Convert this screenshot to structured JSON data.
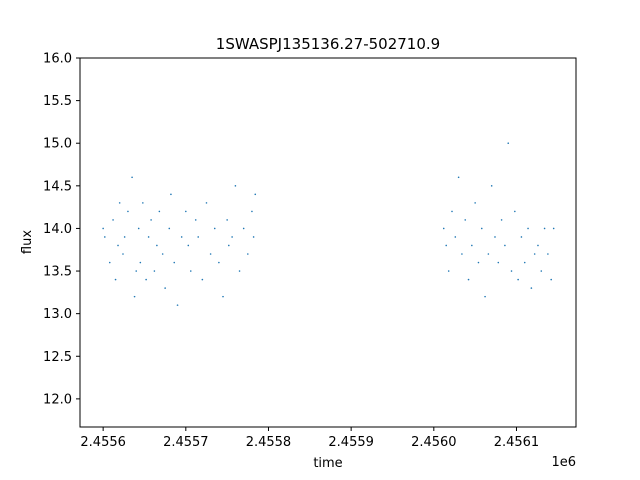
{
  "chart_data": {
    "type": "scatter",
    "title": "1SWASPJ135136.27-502710.9",
    "xlabel": "time",
    "ylabel": "flux",
    "x_offset_label": "1e6",
    "xlim": [
      2455532,
      2456132
    ],
    "ylim": [
      11.67,
      16.0
    ],
    "x_ticks": [
      2455560,
      2455660,
      2455760,
      2455860,
      2455960,
      2456060
    ],
    "x_tick_labels": [
      "2.4556",
      "2.4557",
      "2.4558",
      "2.4559",
      "2.4560",
      "2.4561"
    ],
    "y_ticks": [
      12.0,
      12.5,
      13.0,
      13.5,
      14.0,
      14.5,
      15.0,
      15.5,
      16.0
    ],
    "y_tick_labels": [
      "12.0",
      "12.5",
      "13.0",
      "13.5",
      "14.0",
      "14.5",
      "15.0",
      "15.5",
      "16.0"
    ],
    "marker_color": "#1f77b4",
    "grid": false,
    "legend": "none",
    "series": [
      {
        "x": [
          2455560,
          2455562,
          2455568,
          2455572,
          2455575,
          2455578,
          2455580,
          2455584,
          2455586,
          2455590,
          2455595,
          2455598,
          2455600,
          2455603,
          2455605,
          2455608,
          2455612,
          2455615,
          2455618,
          2455622,
          2455625,
          2455628,
          2455632,
          2455635,
          2455640,
          2455642,
          2455646,
          2455650,
          2455655,
          2455660,
          2455663,
          2455666,
          2455672,
          2455675,
          2455680,
          2455685,
          2455690,
          2455695,
          2455700,
          2455705,
          2455710,
          2455712,
          2455716,
          2455720,
          2455725,
          2455730,
          2455735,
          2455740,
          2455742,
          2455744,
          2455972,
          2455975,
          2455978,
          2455982,
          2455986,
          2455990,
          2455994,
          2455998,
          2456002,
          2456006,
          2456010,
          2456014,
          2456018,
          2456022,
          2456026,
          2456030,
          2456034,
          2456038,
          2456042,
          2456046,
          2456050,
          2456054,
          2456058,
          2456062,
          2456066,
          2456070,
          2456074,
          2456078,
          2456082,
          2456086,
          2456090,
          2456094,
          2456098,
          2456102,
          2456105
        ],
        "y": [
          14.0,
          13.9,
          13.6,
          14.1,
          13.4,
          13.8,
          14.3,
          13.7,
          13.9,
          14.2,
          14.6,
          13.2,
          13.5,
          14.0,
          13.6,
          14.3,
          13.4,
          13.9,
          14.1,
          13.5,
          13.8,
          14.2,
          13.7,
          13.3,
          14.0,
          14.4,
          13.6,
          13.1,
          13.9,
          14.2,
          13.8,
          13.5,
          14.1,
          13.9,
          13.4,
          14.3,
          13.7,
          14.0,
          13.6,
          13.2,
          14.1,
          13.8,
          13.9,
          14.5,
          13.5,
          14.0,
          13.7,
          14.2,
          13.9,
          14.4,
          14.0,
          13.8,
          13.5,
          14.2,
          13.9,
          14.6,
          13.7,
          14.1,
          13.4,
          13.8,
          14.3,
          13.6,
          14.0,
          13.2,
          13.7,
          14.5,
          13.9,
          13.6,
          14.1,
          13.8,
          15.0,
          13.5,
          14.2,
          13.4,
          13.9,
          13.6,
          14.0,
          13.3,
          13.7,
          13.8,
          13.5,
          14.0,
          13.7,
          13.4,
          14.0
        ]
      }
    ]
  }
}
